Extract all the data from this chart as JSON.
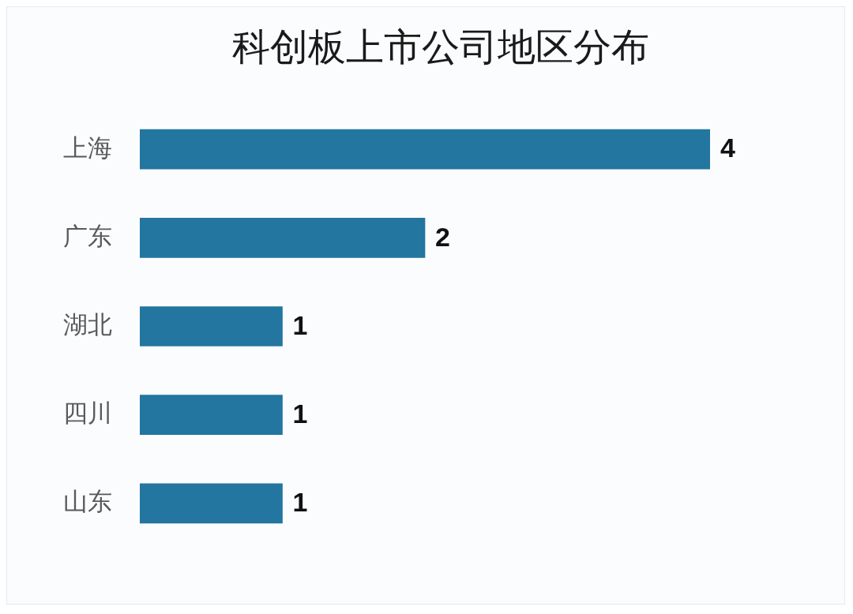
{
  "chart_data": {
    "type": "bar",
    "orientation": "horizontal",
    "title": "科创板上市公司地区分布",
    "categories": [
      "上海",
      "广东",
      "湖北",
      "四川",
      "山东"
    ],
    "values": [
      4,
      2,
      1,
      1,
      1
    ],
    "color": "#22769f",
    "data_labels": true
  }
}
